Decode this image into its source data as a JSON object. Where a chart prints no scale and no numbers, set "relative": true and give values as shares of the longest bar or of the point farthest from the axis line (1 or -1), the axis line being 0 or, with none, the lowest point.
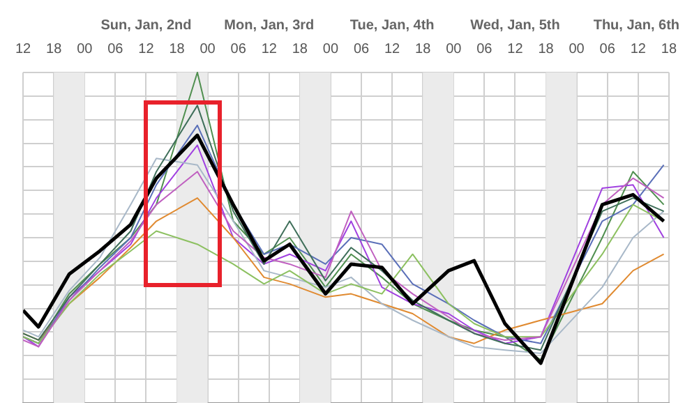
{
  "chart_data": {
    "type": "line",
    "relative": true,
    "grid": true,
    "legend": false,
    "line_style": "solid",
    "x": [
      12,
      15,
      21,
      27,
      33,
      38,
      46,
      53,
      59,
      64,
      71,
      76,
      82,
      88,
      95,
      100,
      106,
      113,
      125,
      131,
      137
    ],
    "xlim": [
      12,
      138
    ],
    "xticks": [
      {
        "value": 12,
        "label": "12"
      },
      {
        "value": 18,
        "label": "18"
      },
      {
        "value": 24,
        "label": "00"
      },
      {
        "value": 30,
        "label": "06"
      },
      {
        "value": 36,
        "label": "12"
      },
      {
        "value": 42,
        "label": "18"
      },
      {
        "value": 48,
        "label": "00"
      },
      {
        "value": 54,
        "label": "06"
      },
      {
        "value": 60,
        "label": "12"
      },
      {
        "value": 66,
        "label": "18"
      },
      {
        "value": 72,
        "label": "00"
      },
      {
        "value": 78,
        "label": "06"
      },
      {
        "value": 84,
        "label": "12"
      },
      {
        "value": 90,
        "label": "18"
      },
      {
        "value": 96,
        "label": "00"
      },
      {
        "value": 102,
        "label": "06"
      },
      {
        "value": 108,
        "label": "12"
      },
      {
        "value": 114,
        "label": "18"
      },
      {
        "value": 120,
        "label": "00"
      },
      {
        "value": 126,
        "label": "06"
      },
      {
        "value": 132,
        "label": "12"
      },
      {
        "value": 138,
        "label": "18"
      }
    ],
    "annotations": [
      "Sun, Jan, 2nd",
      "Mon, Jan, 3rd",
      "Tue, Jan, 4th",
      "Wed, Jan, 5th",
      "Thu, Jan, 6th"
    ],
    "bands": [
      {
        "axis": "x",
        "from": 18,
        "to": 24,
        "color": "#ebebeb"
      },
      {
        "axis": "x",
        "from": 42,
        "to": 48,
        "color": "#ebebeb"
      },
      {
        "axis": "x",
        "from": 66,
        "to": 72,
        "color": "#ebebeb"
      },
      {
        "axis": "x",
        "from": 90,
        "to": 96,
        "color": "#ebebeb"
      },
      {
        "axis": "x",
        "from": 114,
        "to": 120,
        "color": "#ebebeb"
      }
    ],
    "series": [
      {
        "color": "#4f8f4f",
        "values": [
          0.2,
          0.18,
          0.33,
          0.42,
          0.5,
          0.6,
          1.0,
          0.55,
          0.45,
          0.5,
          0.35,
          0.45,
          0.38,
          0.3,
          0.25,
          0.22,
          0.2,
          0.13,
          0.5,
          0.7,
          0.6
        ]
      },
      {
        "color": "#a040e0",
        "values": [
          0.2,
          0.17,
          0.32,
          0.4,
          0.48,
          0.62,
          0.78,
          0.5,
          0.42,
          0.45,
          0.4,
          0.55,
          0.35,
          0.3,
          0.27,
          0.22,
          0.18,
          0.2,
          0.65,
          0.66,
          0.5
        ]
      },
      {
        "color": "#e08a30",
        "values": [
          0.21,
          0.19,
          0.3,
          0.38,
          0.47,
          0.55,
          0.62,
          0.5,
          0.38,
          0.36,
          0.32,
          0.33,
          0.3,
          0.27,
          0.2,
          0.18,
          0.22,
          0.25,
          0.3,
          0.4,
          0.45
        ]
      },
      {
        "color": "#5a6fb8",
        "values": [
          0.2,
          0.18,
          0.31,
          0.41,
          0.5,
          0.66,
          0.84,
          0.6,
          0.45,
          0.48,
          0.42,
          0.5,
          0.48,
          0.36,
          0.3,
          0.25,
          0.2,
          0.18,
          0.55,
          0.6,
          0.72
        ]
      },
      {
        "color": "#a8b8c8",
        "values": [
          0.22,
          0.2,
          0.34,
          0.44,
          0.6,
          0.74,
          0.72,
          0.55,
          0.4,
          0.38,
          0.35,
          0.38,
          0.3,
          0.25,
          0.2,
          0.17,
          0.16,
          0.15,
          0.35,
          0.5,
          0.58
        ]
      },
      {
        "color": "#8cc060",
        "values": [
          0.2,
          0.18,
          0.3,
          0.39,
          0.46,
          0.52,
          0.48,
          0.42,
          0.36,
          0.4,
          0.33,
          0.36,
          0.33,
          0.45,
          0.3,
          0.24,
          0.2,
          0.2,
          0.45,
          0.6,
          0.55
        ]
      },
      {
        "color": "#c060c0",
        "values": [
          0.19,
          0.17,
          0.31,
          0.4,
          0.49,
          0.6,
          0.7,
          0.52,
          0.44,
          0.42,
          0.38,
          0.58,
          0.4,
          0.33,
          0.26,
          0.21,
          0.19,
          0.2,
          0.6,
          0.68,
          0.62
        ]
      },
      {
        "color": "#3f6f5a",
        "values": [
          0.21,
          0.19,
          0.32,
          0.42,
          0.52,
          0.7,
          0.9,
          0.58,
          0.42,
          0.55,
          0.37,
          0.47,
          0.4,
          0.31,
          0.25,
          0.21,
          0.18,
          0.16,
          0.58,
          0.62,
          0.58
        ]
      },
      {
        "color": "#000000",
        "values": [
          0.28,
          0.23,
          0.39,
          0.46,
          0.54,
          0.68,
          0.81,
          0.6,
          0.43,
          0.48,
          0.33,
          0.42,
          0.41,
          0.3,
          0.4,
          0.43,
          0.24,
          0.12,
          0.6,
          0.63,
          0.55
        ]
      }
    ]
  }
}
